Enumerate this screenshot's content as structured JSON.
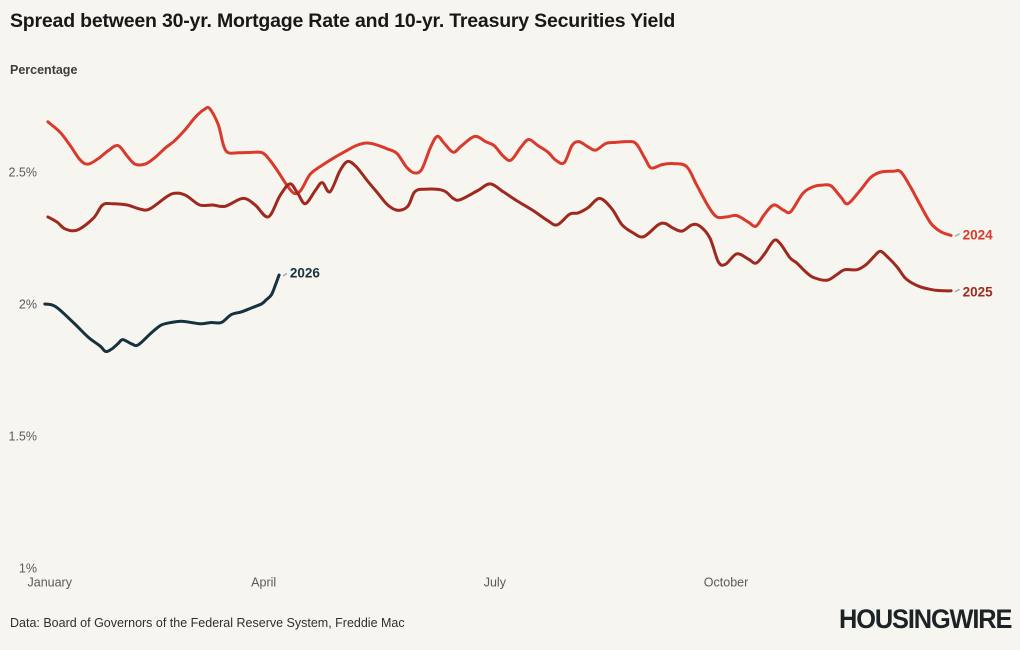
{
  "page": {
    "background": "#f7f5ef"
  },
  "header": {
    "title": "Spread between 30-yr. Mortgage Rate and 10-yr. Treasury Securities Yield",
    "subtitle": "Percentage"
  },
  "footer": {
    "source": "Data: Board of Governors of the Federal Reserve System, Freddie Mac",
    "logo": "HOUSINGWIRE"
  },
  "chart_data": {
    "type": "line",
    "title": "Spread between 30-yr. Mortgage Rate and 10-yr. Treasury Securities Yield",
    "ylabel": "Percentage",
    "x_unit": "months_from_jan1 (0=January, 3=April, 6=July, 9=October)",
    "xlim": [
      0,
      12.3
    ],
    "ylim": [
      1,
      2.8
    ],
    "grid": false,
    "legend_position": "inline-end-labels",
    "y_ticks": [
      {
        "label": "2.5%",
        "value": 2.5
      },
      {
        "label": "2%",
        "value": 2.0
      },
      {
        "label": "1.5%",
        "value": 1.5
      },
      {
        "label": "1%",
        "value": 1.0
      }
    ],
    "x_ticks": [
      {
        "label": "January",
        "value": 0,
        "align": "start"
      },
      {
        "label": "April",
        "value": 3,
        "align": "middle"
      },
      {
        "label": "July",
        "value": 6,
        "align": "middle"
      },
      {
        "label": "October",
        "value": 9,
        "align": "middle"
      }
    ],
    "series": [
      {
        "name": "2024",
        "color": "#d93a2b",
        "label": {
          "text": "2024",
          "m": 12.07,
          "v": 2.262
        },
        "points": [
          [
            0.2,
            2.69
          ],
          [
            0.36,
            2.65
          ],
          [
            0.49,
            2.6
          ],
          [
            0.62,
            2.545
          ],
          [
            0.72,
            2.53
          ],
          [
            0.85,
            2.55
          ],
          [
            0.98,
            2.58
          ],
          [
            1.11,
            2.6
          ],
          [
            1.23,
            2.56
          ],
          [
            1.33,
            2.53
          ],
          [
            1.46,
            2.53
          ],
          [
            1.59,
            2.555
          ],
          [
            1.72,
            2.59
          ],
          [
            1.85,
            2.62
          ],
          [
            1.98,
            2.66
          ],
          [
            2.12,
            2.71
          ],
          [
            2.23,
            2.737
          ],
          [
            2.3,
            2.74
          ],
          [
            2.41,
            2.68
          ],
          [
            2.48,
            2.6
          ],
          [
            2.54,
            2.573
          ],
          [
            2.67,
            2.573
          ],
          [
            2.82,
            2.574
          ],
          [
            2.98,
            2.573
          ],
          [
            3.08,
            2.545
          ],
          [
            3.19,
            2.5
          ],
          [
            3.29,
            2.455
          ],
          [
            3.39,
            2.42
          ],
          [
            3.48,
            2.43
          ],
          [
            3.6,
            2.49
          ],
          [
            3.73,
            2.52
          ],
          [
            3.89,
            2.55
          ],
          [
            4.04,
            2.575
          ],
          [
            4.2,
            2.6
          ],
          [
            4.33,
            2.61
          ],
          [
            4.44,
            2.605
          ],
          [
            4.6,
            2.588
          ],
          [
            4.73,
            2.57
          ],
          [
            4.85,
            2.52
          ],
          [
            4.95,
            2.497
          ],
          [
            5.05,
            2.51
          ],
          [
            5.16,
            2.59
          ],
          [
            5.25,
            2.635
          ],
          [
            5.34,
            2.61
          ],
          [
            5.46,
            2.575
          ],
          [
            5.57,
            2.6
          ],
          [
            5.74,
            2.635
          ],
          [
            5.88,
            2.615
          ],
          [
            5.99,
            2.6
          ],
          [
            6.11,
            2.56
          ],
          [
            6.21,
            2.545
          ],
          [
            6.34,
            2.595
          ],
          [
            6.44,
            2.623
          ],
          [
            6.56,
            2.6
          ],
          [
            6.69,
            2.575
          ],
          [
            6.79,
            2.545
          ],
          [
            6.9,
            2.535
          ],
          [
            7.0,
            2.6
          ],
          [
            7.09,
            2.615
          ],
          [
            7.21,
            2.595
          ],
          [
            7.31,
            2.583
          ],
          [
            7.44,
            2.608
          ],
          [
            7.57,
            2.612
          ],
          [
            7.71,
            2.615
          ],
          [
            7.83,
            2.608
          ],
          [
            7.95,
            2.55
          ],
          [
            8.03,
            2.515
          ],
          [
            8.17,
            2.528
          ],
          [
            8.32,
            2.532
          ],
          [
            8.49,
            2.52
          ],
          [
            8.62,
            2.45
          ],
          [
            8.77,
            2.37
          ],
          [
            8.88,
            2.33
          ],
          [
            9.01,
            2.33
          ],
          [
            9.14,
            2.335
          ],
          [
            9.29,
            2.31
          ],
          [
            9.39,
            2.295
          ],
          [
            9.5,
            2.34
          ],
          [
            9.62,
            2.375
          ],
          [
            9.75,
            2.355
          ],
          [
            9.84,
            2.35
          ],
          [
            10.0,
            2.42
          ],
          [
            10.14,
            2.445
          ],
          [
            10.24,
            2.45
          ],
          [
            10.36,
            2.448
          ],
          [
            10.49,
            2.405
          ],
          [
            10.58,
            2.38
          ],
          [
            10.74,
            2.43
          ],
          [
            10.88,
            2.48
          ],
          [
            11.01,
            2.5
          ],
          [
            11.17,
            2.503
          ],
          [
            11.27,
            2.5
          ],
          [
            11.4,
            2.44
          ],
          [
            11.53,
            2.37
          ],
          [
            11.66,
            2.305
          ],
          [
            11.79,
            2.273
          ],
          [
            11.92,
            2.26
          ]
        ]
      },
      {
        "name": "2025",
        "color": "#9e2a1f",
        "label": {
          "text": "2025",
          "m": 12.07,
          "v": 2.047
        },
        "points": [
          [
            0.2,
            2.33
          ],
          [
            0.32,
            2.31
          ],
          [
            0.42,
            2.285
          ],
          [
            0.58,
            2.28
          ],
          [
            0.79,
            2.325
          ],
          [
            0.91,
            2.375
          ],
          [
            1.04,
            2.38
          ],
          [
            1.23,
            2.375
          ],
          [
            1.39,
            2.36
          ],
          [
            1.52,
            2.36
          ],
          [
            1.76,
            2.41
          ],
          [
            1.88,
            2.42
          ],
          [
            2.0,
            2.41
          ],
          [
            2.17,
            2.375
          ],
          [
            2.34,
            2.375
          ],
          [
            2.5,
            2.37
          ],
          [
            2.73,
            2.4
          ],
          [
            2.89,
            2.375
          ],
          [
            3.06,
            2.33
          ],
          [
            3.21,
            2.41
          ],
          [
            3.34,
            2.455
          ],
          [
            3.44,
            2.42
          ],
          [
            3.54,
            2.38
          ],
          [
            3.67,
            2.43
          ],
          [
            3.76,
            2.46
          ],
          [
            3.86,
            2.425
          ],
          [
            3.99,
            2.505
          ],
          [
            4.09,
            2.54
          ],
          [
            4.2,
            2.52
          ],
          [
            4.35,
            2.465
          ],
          [
            4.48,
            2.42
          ],
          [
            4.61,
            2.375
          ],
          [
            4.74,
            2.355
          ],
          [
            4.87,
            2.37
          ],
          [
            4.96,
            2.425
          ],
          [
            5.09,
            2.435
          ],
          [
            5.33,
            2.43
          ],
          [
            5.46,
            2.4
          ],
          [
            5.55,
            2.395
          ],
          [
            5.78,
            2.43
          ],
          [
            5.94,
            2.455
          ],
          [
            6.11,
            2.425
          ],
          [
            6.29,
            2.39
          ],
          [
            6.49,
            2.355
          ],
          [
            6.69,
            2.315
          ],
          [
            6.81,
            2.3
          ],
          [
            6.97,
            2.34
          ],
          [
            7.08,
            2.345
          ],
          [
            7.21,
            2.365
          ],
          [
            7.36,
            2.4
          ],
          [
            7.52,
            2.36
          ],
          [
            7.65,
            2.3
          ],
          [
            7.79,
            2.27
          ],
          [
            7.93,
            2.255
          ],
          [
            8.12,
            2.3
          ],
          [
            8.21,
            2.305
          ],
          [
            8.31,
            2.288
          ],
          [
            8.43,
            2.276
          ],
          [
            8.56,
            2.3
          ],
          [
            8.66,
            2.295
          ],
          [
            8.79,
            2.25
          ],
          [
            8.9,
            2.16
          ],
          [
            8.99,
            2.15
          ],
          [
            9.14,
            2.19
          ],
          [
            9.29,
            2.17
          ],
          [
            9.39,
            2.155
          ],
          [
            9.5,
            2.19
          ],
          [
            9.62,
            2.24
          ],
          [
            9.7,
            2.23
          ],
          [
            9.83,
            2.175
          ],
          [
            9.92,
            2.155
          ],
          [
            10.04,
            2.12
          ],
          [
            10.14,
            2.1
          ],
          [
            10.31,
            2.09
          ],
          [
            10.43,
            2.11
          ],
          [
            10.54,
            2.13
          ],
          [
            10.7,
            2.13
          ],
          [
            10.82,
            2.15
          ],
          [
            10.92,
            2.18
          ],
          [
            11.0,
            2.2
          ],
          [
            11.09,
            2.18
          ],
          [
            11.22,
            2.14
          ],
          [
            11.32,
            2.1
          ],
          [
            11.41,
            2.08
          ],
          [
            11.52,
            2.065
          ],
          [
            11.61,
            2.058
          ],
          [
            11.72,
            2.052
          ],
          [
            11.83,
            2.05
          ],
          [
            11.92,
            2.05
          ]
        ]
      },
      {
        "name": "2026",
        "color": "#17323f",
        "label": {
          "text": "2026",
          "m": 3.34,
          "v": 2.118
        },
        "points": [
          [
            0.16,
            2.0
          ],
          [
            0.3,
            1.99
          ],
          [
            0.53,
            1.93
          ],
          [
            0.72,
            1.875
          ],
          [
            0.88,
            1.84
          ],
          [
            0.95,
            1.82
          ],
          [
            1.03,
            1.83
          ],
          [
            1.11,
            1.85
          ],
          [
            1.17,
            1.865
          ],
          [
            1.28,
            1.85
          ],
          [
            1.37,
            1.845
          ],
          [
            1.54,
            1.89
          ],
          [
            1.67,
            1.92
          ],
          [
            1.8,
            1.93
          ],
          [
            1.93,
            1.935
          ],
          [
            2.06,
            1.93
          ],
          [
            2.19,
            1.925
          ],
          [
            2.32,
            1.93
          ],
          [
            2.45,
            1.93
          ],
          [
            2.58,
            1.96
          ],
          [
            2.71,
            1.97
          ],
          [
            2.84,
            1.985
          ],
          [
            2.97,
            2.0
          ],
          [
            3.03,
            2.015
          ],
          [
            3.1,
            2.035
          ],
          [
            3.15,
            2.07
          ],
          [
            3.2,
            2.11
          ]
        ]
      }
    ]
  }
}
